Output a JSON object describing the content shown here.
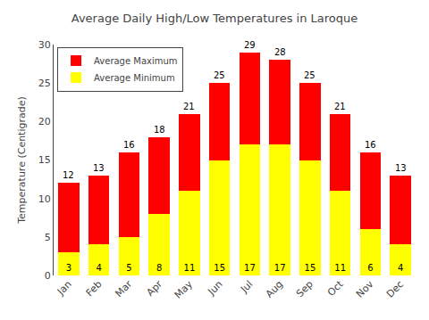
{
  "chart_data": {
    "type": "bar",
    "title": "Average Daily High/Low Temperatures in Laroque",
    "ylabel": "Temperature (Centigrade)",
    "categories": [
      "Jan",
      "Feb",
      "Mar",
      "Apr",
      "May",
      "Jun",
      "Jul",
      "Aug",
      "Sep",
      "Oct",
      "Nov",
      "Dec"
    ],
    "stacked": true,
    "series": [
      {
        "name": "Average Minimum",
        "color": "#FFFF00",
        "values": [
          3,
          4,
          5,
          8,
          11,
          15,
          17,
          17,
          15,
          11,
          6,
          4
        ],
        "data_labels": true
      },
      {
        "name": "Average Maximum",
        "color": "#FF0000",
        "values": [
          9,
          9,
          11,
          10,
          10,
          10,
          12,
          11,
          10,
          10,
          10,
          9
        ]
      }
    ],
    "totals": [
      12,
      13,
      16,
      18,
      21,
      25,
      29,
      28,
      25,
      21,
      16,
      13
    ],
    "ylim": [
      0,
      30
    ],
    "yticks": [
      0,
      5,
      10,
      15,
      20,
      25,
      30
    ],
    "grid": false,
    "legend": "upper left"
  }
}
